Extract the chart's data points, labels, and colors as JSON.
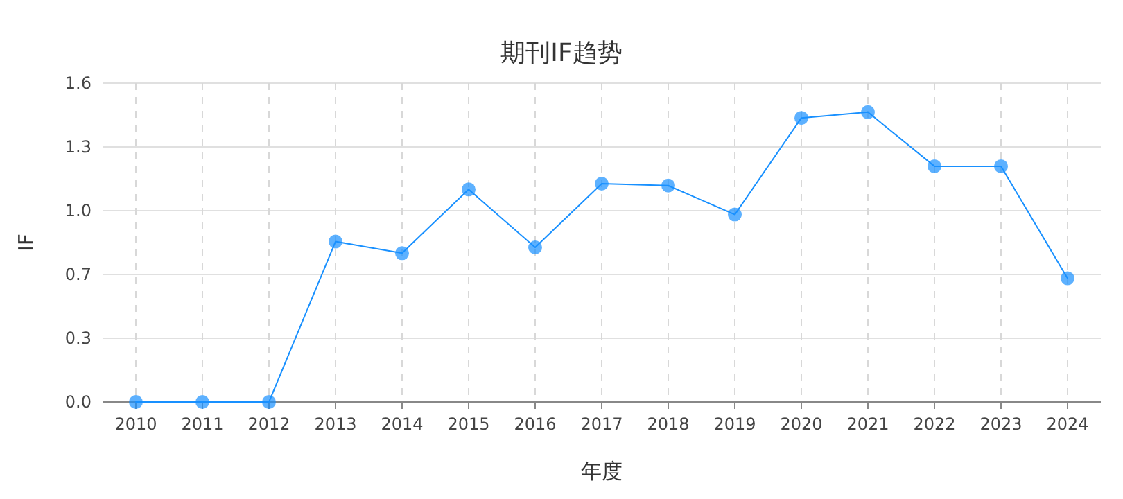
{
  "chart_data": {
    "type": "line",
    "title": "期刊IF趋势",
    "xlabel": "年度",
    "ylabel": "IF",
    "categories": [
      "2010",
      "2011",
      "2012",
      "2013",
      "2014",
      "2015",
      "2016",
      "2017",
      "2018",
      "2019",
      "2020",
      "2021",
      "2022",
      "2023",
      "2024"
    ],
    "series": [
      {
        "color": "#1890ff",
        "values": [
          0,
          0,
          0,
          0.83,
          0.77,
          1.1,
          0.8,
          1.13,
          1.12,
          0.97,
          1.47,
          1.5,
          1.22,
          1.22,
          0.64
        ]
      }
    ],
    "ylim": [
      0,
      1.65
    ],
    "yticks": [
      {
        "value": 0,
        "label": "0.0"
      },
      {
        "value": 0.33,
        "label": "0.3"
      },
      {
        "value": 0.66,
        "label": "0.7"
      },
      {
        "value": 0.99,
        "label": "1.0"
      },
      {
        "value": 1.32,
        "label": "1.3"
      },
      {
        "value": 1.65,
        "label": "1.6"
      }
    ],
    "grid": true,
    "marker": "circle",
    "line_style": "solid"
  }
}
